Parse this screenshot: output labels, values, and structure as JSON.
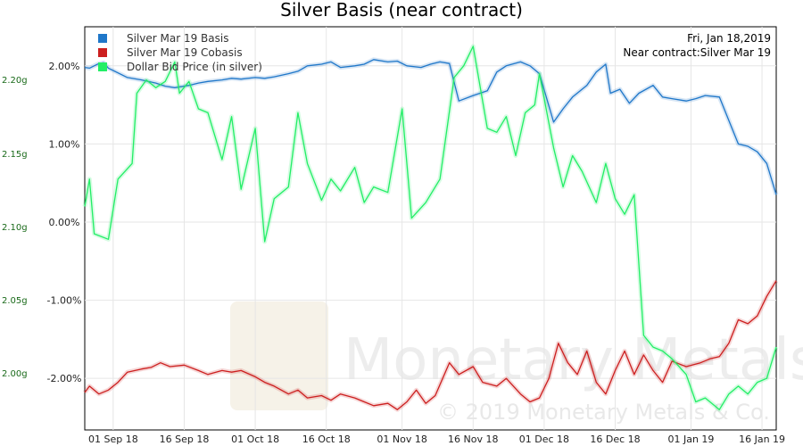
{
  "chart_data": {
    "type": "line",
    "title": "Silver Basis (near contract)",
    "info_date": "Fri, Jan 18,2019",
    "info_contract": "Near contract:Silver Mar 19",
    "x_ticks": [
      "01 Sep 18",
      "16 Sep 18",
      "01 Oct 18",
      "16 Oct 18",
      "01 Nov 18",
      "16 Nov 18",
      "01 Dec 18",
      "16 Dec 18",
      "01 Jan 19",
      "16 Jan 19"
    ],
    "y_right_ticks": [
      "2.00%",
      "1.00%",
      "0.00%",
      "-1.00%",
      "-2.00%"
    ],
    "y_right_values": [
      2,
      1,
      0,
      -1,
      -2
    ],
    "y_left_ticks": [
      "2.20g",
      "2.15g",
      "2.10g",
      "2.05g",
      "2.00g"
    ],
    "y_left_values": [
      2.2,
      2.15,
      2.1,
      2.05,
      2.0
    ],
    "ylim_right": [
      -2.66,
      2.5
    ],
    "xlim": [
      "2018-08-26",
      "2019-01-19"
    ],
    "grid": true,
    "legend": "top-left",
    "watermark": "Monetary Metals",
    "copyright": "© 2019 Monetary Metals & Co.",
    "series": [
      {
        "name": "Silver Mar 19 Basis",
        "color": "#1f77c9",
        "axis": "right",
        "points": [
          [
            "2018-08-26",
            1.98
          ],
          [
            "2018-08-27",
            1.97
          ],
          [
            "2018-08-28",
            2.0
          ],
          [
            "2018-08-29",
            2.03
          ],
          [
            "2018-08-30",
            2.04
          ],
          [
            "2018-08-31",
            1.97
          ],
          [
            "2018-09-04",
            1.85
          ],
          [
            "2018-09-07",
            1.82
          ],
          [
            "2018-09-10",
            1.78
          ],
          [
            "2018-09-12",
            1.74
          ],
          [
            "2018-09-14",
            1.72
          ],
          [
            "2018-09-17",
            1.75
          ],
          [
            "2018-09-19",
            1.78
          ],
          [
            "2018-09-21",
            1.8
          ],
          [
            "2018-09-24",
            1.82
          ],
          [
            "2018-09-26",
            1.84
          ],
          [
            "2018-09-28",
            1.83
          ],
          [
            "2018-10-01",
            1.85
          ],
          [
            "2018-10-03",
            1.84
          ],
          [
            "2018-10-05",
            1.86
          ],
          [
            "2018-10-08",
            1.9
          ],
          [
            "2018-10-10",
            1.93
          ],
          [
            "2018-10-12",
            2.0
          ],
          [
            "2018-10-15",
            2.02
          ],
          [
            "2018-10-17",
            2.05
          ],
          [
            "2018-10-19",
            1.98
          ],
          [
            "2018-10-22",
            2.0
          ],
          [
            "2018-10-24",
            2.02
          ],
          [
            "2018-10-26",
            2.08
          ],
          [
            "2018-10-29",
            2.05
          ],
          [
            "2018-10-31",
            2.06
          ],
          [
            "2018-11-02",
            2.0
          ],
          [
            "2018-11-05",
            1.98
          ],
          [
            "2018-11-07",
            2.02
          ],
          [
            "2018-11-09",
            2.05
          ],
          [
            "2018-11-11",
            2.03
          ],
          [
            "2018-11-13",
            1.55
          ],
          [
            "2018-11-16",
            1.62
          ],
          [
            "2018-11-19",
            1.68
          ],
          [
            "2018-11-21",
            1.92
          ],
          [
            "2018-11-23",
            2.0
          ],
          [
            "2018-11-26",
            2.05
          ],
          [
            "2018-11-28",
            2.0
          ],
          [
            "2018-11-30",
            1.9
          ],
          [
            "2018-12-03",
            1.28
          ],
          [
            "2018-12-05",
            1.45
          ],
          [
            "2018-12-07",
            1.6
          ],
          [
            "2018-12-10",
            1.75
          ],
          [
            "2018-12-12",
            1.92
          ],
          [
            "2018-12-14",
            2.02
          ],
          [
            "2018-12-15",
            1.65
          ],
          [
            "2018-12-17",
            1.7
          ],
          [
            "2018-12-19",
            1.52
          ],
          [
            "2018-12-21",
            1.65
          ],
          [
            "2018-12-24",
            1.75
          ],
          [
            "2018-12-26",
            1.6
          ],
          [
            "2018-12-28",
            1.58
          ],
          [
            "2018-12-31",
            1.55
          ],
          [
            "2019-01-02",
            1.58
          ],
          [
            "2019-01-04",
            1.62
          ],
          [
            "2019-01-07",
            1.6
          ],
          [
            "2019-01-09",
            1.3
          ],
          [
            "2019-01-11",
            1.0
          ],
          [
            "2019-01-13",
            0.97
          ],
          [
            "2019-01-15",
            0.9
          ],
          [
            "2019-01-17",
            0.75
          ],
          [
            "2019-01-19",
            0.35
          ]
        ]
      },
      {
        "name": "Silver Mar 19 Cobasis",
        "color": "#cc1f1f",
        "axis": "right",
        "points": [
          [
            "2018-08-26",
            -2.18
          ],
          [
            "2018-08-27",
            -2.1
          ],
          [
            "2018-08-29",
            -2.2
          ],
          [
            "2018-08-31",
            -2.15
          ],
          [
            "2018-09-02",
            -2.05
          ],
          [
            "2018-09-04",
            -1.92
          ],
          [
            "2018-09-07",
            -1.88
          ],
          [
            "2018-09-09",
            -1.86
          ],
          [
            "2018-09-11",
            -1.8
          ],
          [
            "2018-09-13",
            -1.85
          ],
          [
            "2018-09-16",
            -1.83
          ],
          [
            "2018-09-19",
            -1.9
          ],
          [
            "2018-09-21",
            -1.95
          ],
          [
            "2018-09-24",
            -1.9
          ],
          [
            "2018-09-26",
            -1.92
          ],
          [
            "2018-09-28",
            -1.9
          ],
          [
            "2018-10-01",
            -1.98
          ],
          [
            "2018-10-03",
            -2.05
          ],
          [
            "2018-10-05",
            -2.1
          ],
          [
            "2018-10-08",
            -2.2
          ],
          [
            "2018-10-10",
            -2.15
          ],
          [
            "2018-10-12",
            -2.25
          ],
          [
            "2018-10-15",
            -2.22
          ],
          [
            "2018-10-17",
            -2.28
          ],
          [
            "2018-10-19",
            -2.2
          ],
          [
            "2018-10-22",
            -2.25
          ],
          [
            "2018-10-24",
            -2.3
          ],
          [
            "2018-10-26",
            -2.35
          ],
          [
            "2018-10-29",
            -2.32
          ],
          [
            "2018-10-31",
            -2.4
          ],
          [
            "2018-11-02",
            -2.3
          ],
          [
            "2018-11-04",
            -2.15
          ],
          [
            "2018-11-06",
            -2.32
          ],
          [
            "2018-11-08",
            -2.22
          ],
          [
            "2018-11-11",
            -1.8
          ],
          [
            "2018-11-13",
            -1.95
          ],
          [
            "2018-11-16",
            -1.85
          ],
          [
            "2018-11-18",
            -2.05
          ],
          [
            "2018-11-21",
            -2.1
          ],
          [
            "2018-11-23",
            -2.0
          ],
          [
            "2018-11-26",
            -2.2
          ],
          [
            "2018-11-28",
            -2.3
          ],
          [
            "2018-11-30",
            -2.25
          ],
          [
            "2018-12-02",
            -2.0
          ],
          [
            "2018-12-04",
            -1.55
          ],
          [
            "2018-12-06",
            -1.8
          ],
          [
            "2018-12-08",
            -1.95
          ],
          [
            "2018-12-10",
            -1.65
          ],
          [
            "2018-12-12",
            -2.05
          ],
          [
            "2018-12-14",
            -2.2
          ],
          [
            "2018-12-16",
            -1.9
          ],
          [
            "2018-12-18",
            -1.65
          ],
          [
            "2018-12-20",
            -1.95
          ],
          [
            "2018-12-22",
            -1.7
          ],
          [
            "2018-12-24",
            -1.9
          ],
          [
            "2018-12-26",
            -2.05
          ],
          [
            "2018-12-28",
            -1.78
          ],
          [
            "2018-12-31",
            -1.85
          ],
          [
            "2019-01-03",
            -1.8
          ],
          [
            "2019-01-05",
            -1.75
          ],
          [
            "2019-01-07",
            -1.72
          ],
          [
            "2019-01-09",
            -1.55
          ],
          [
            "2019-01-11",
            -1.25
          ],
          [
            "2019-01-13",
            -1.3
          ],
          [
            "2019-01-15",
            -1.2
          ],
          [
            "2019-01-17",
            -0.95
          ],
          [
            "2019-01-19",
            -0.75
          ]
        ]
      },
      {
        "name": "Dollar Bid Price (in silver)",
        "color": "#22ee66",
        "axis": "right",
        "points": [
          [
            "2018-08-26",
            0.2
          ],
          [
            "2018-08-27",
            0.55
          ],
          [
            "2018-08-28",
            -0.15
          ],
          [
            "2018-08-31",
            -0.22
          ],
          [
            "2018-09-02",
            0.55
          ],
          [
            "2018-09-05",
            0.75
          ],
          [
            "2018-09-06",
            1.65
          ],
          [
            "2018-09-08",
            1.82
          ],
          [
            "2018-09-10",
            1.72
          ],
          [
            "2018-09-12",
            1.8
          ],
          [
            "2018-09-14",
            2.05
          ],
          [
            "2018-09-15",
            1.65
          ],
          [
            "2018-09-17",
            1.8
          ],
          [
            "2018-09-19",
            1.45
          ],
          [
            "2018-09-21",
            1.4
          ],
          [
            "2018-09-24",
            0.8
          ],
          [
            "2018-09-26",
            1.35
          ],
          [
            "2018-09-28",
            0.42
          ],
          [
            "2018-10-01",
            1.2
          ],
          [
            "2018-10-03",
            -0.25
          ],
          [
            "2018-10-05",
            0.3
          ],
          [
            "2018-10-08",
            0.45
          ],
          [
            "2018-10-10",
            1.4
          ],
          [
            "2018-10-12",
            0.75
          ],
          [
            "2018-10-15",
            0.28
          ],
          [
            "2018-10-17",
            0.55
          ],
          [
            "2018-10-19",
            0.4
          ],
          [
            "2018-10-22",
            0.7
          ],
          [
            "2018-10-24",
            0.25
          ],
          [
            "2018-10-26",
            0.45
          ],
          [
            "2018-10-29",
            0.38
          ],
          [
            "2018-11-01",
            1.45
          ],
          [
            "2018-11-03",
            0.05
          ],
          [
            "2018-11-06",
            0.25
          ],
          [
            "2018-11-09",
            0.55
          ],
          [
            "2018-11-12",
            1.85
          ],
          [
            "2018-11-14",
            2.0
          ],
          [
            "2018-11-16",
            2.25
          ],
          [
            "2018-11-19",
            1.2
          ],
          [
            "2018-11-21",
            1.15
          ],
          [
            "2018-11-23",
            1.35
          ],
          [
            "2018-11-25",
            0.85
          ],
          [
            "2018-11-27",
            1.4
          ],
          [
            "2018-11-29",
            1.5
          ],
          [
            "2018-11-30",
            1.9
          ],
          [
            "2018-12-03",
            0.95
          ],
          [
            "2018-12-05",
            0.45
          ],
          [
            "2018-12-07",
            0.85
          ],
          [
            "2018-12-09",
            0.65
          ],
          [
            "2018-12-12",
            0.25
          ],
          [
            "2018-12-14",
            0.75
          ],
          [
            "2018-12-16",
            0.3
          ],
          [
            "2018-12-18",
            0.1
          ],
          [
            "2018-12-20",
            0.35
          ],
          [
            "2018-12-22",
            -1.45
          ],
          [
            "2018-12-24",
            -1.6
          ],
          [
            "2018-12-26",
            -1.65
          ],
          [
            "2018-12-28",
            -1.75
          ],
          [
            "2018-12-31",
            -1.95
          ],
          [
            "2019-01-02",
            -2.3
          ],
          [
            "2019-01-04",
            -2.25
          ],
          [
            "2019-01-07",
            -2.4
          ],
          [
            "2019-01-09",
            -2.2
          ],
          [
            "2019-01-11",
            -2.1
          ],
          [
            "2019-01-13",
            -2.2
          ],
          [
            "2019-01-15",
            -2.05
          ],
          [
            "2019-01-17",
            -2.0
          ],
          [
            "2019-01-19",
            -1.6
          ]
        ]
      }
    ]
  }
}
